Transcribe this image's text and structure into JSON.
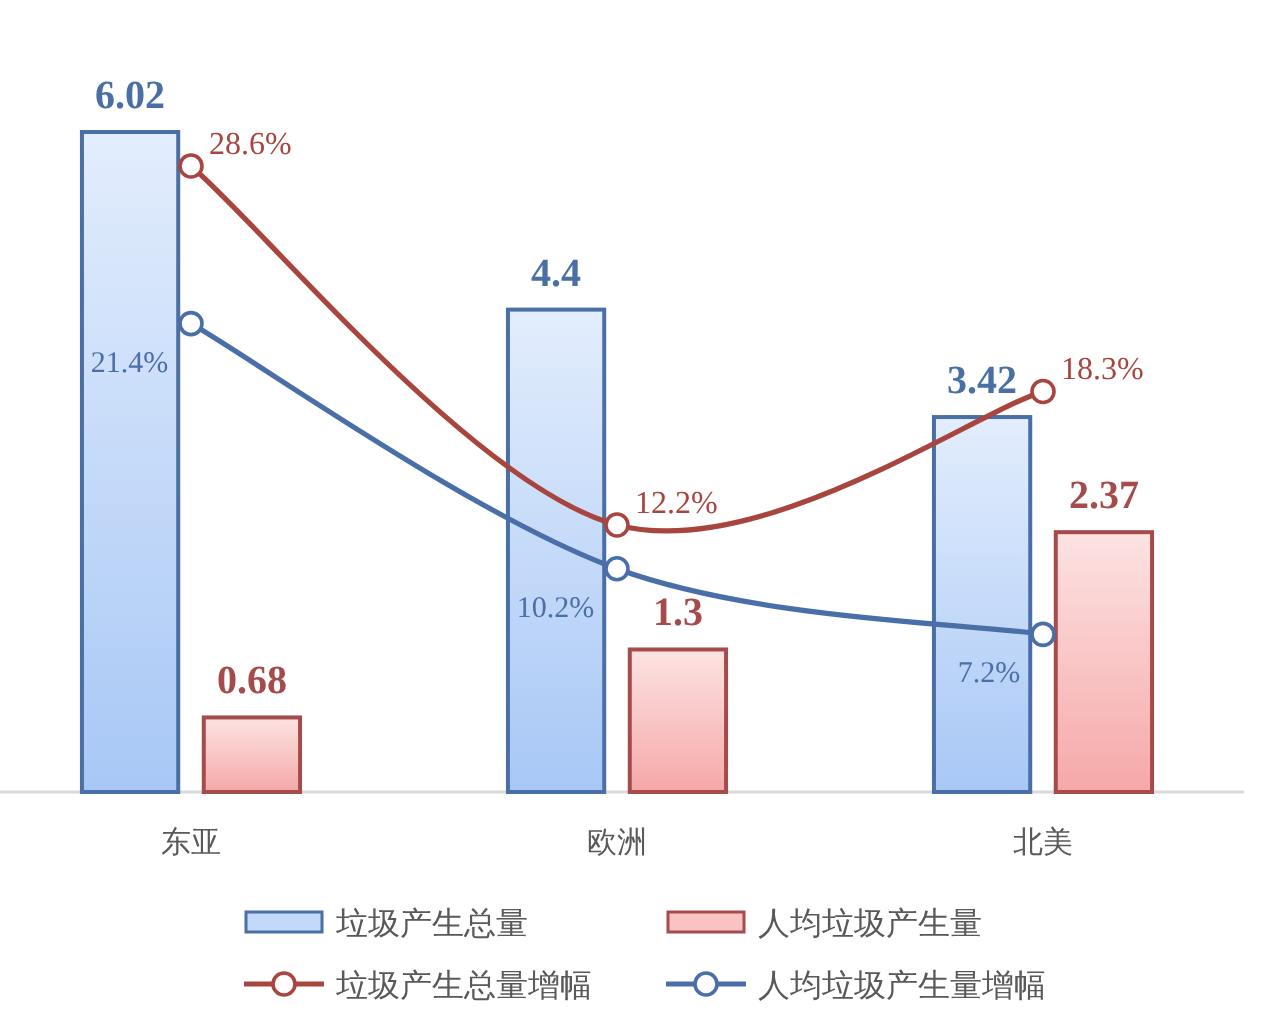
{
  "chart_data": {
    "type": "bar",
    "categories": [
      "东亚",
      "欧洲",
      "北美"
    ],
    "data_labels": true,
    "legend": "bottom",
    "marker": "circle",
    "series": [
      {
        "name": "垃圾产生总量",
        "color": "#4a6fa5",
        "values": [
          6.02,
          4.4,
          3.42
        ]
      },
      {
        "name": "人均垃圾产生量",
        "color": "#a64b4b",
        "values": [
          0.68,
          1.3,
          2.37
        ]
      },
      {
        "name": "垃圾产生总量增幅",
        "type": "line",
        "axis": "y2",
        "color": "#a8453f",
        "values": [
          28.6,
          12.2,
          18.3
        ],
        "value_labels": [
          "28.6%",
          "12.2%",
          "18.3%"
        ]
      },
      {
        "name": "人均垃圾产生量增幅",
        "type": "line",
        "axis": "y2",
        "color": "#4a6fa8",
        "values": [
          21.4,
          10.2,
          7.2
        ],
        "value_labels": [
          "21.4%",
          "10.2%",
          "7.2%"
        ]
      }
    ]
  }
}
